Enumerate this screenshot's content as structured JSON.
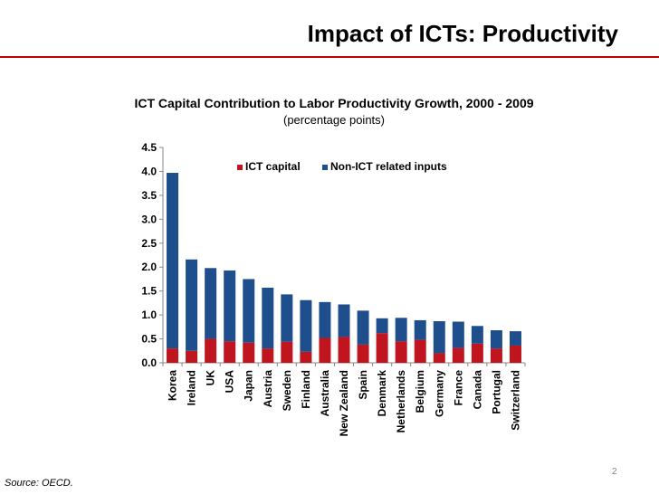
{
  "slide": {
    "title": "Impact of ICTs: Productivity",
    "source": "Source: OECD.",
    "page_number": "2"
  },
  "colors": {
    "accent": "#c00000",
    "ict": "#c0141e",
    "non_ict": "#1f4e8c"
  },
  "chart_data": {
    "type": "bar",
    "stacked": true,
    "title": "ICT Capital Contribution to Labor Productivity Growth, 2000 - 2009",
    "subtitle": "(percentage points)",
    "xlabel": "",
    "ylabel": "",
    "ylim": [
      0,
      4.5
    ],
    "yticks": [
      "0.0",
      "0.5",
      "1.0",
      "1.5",
      "2.0",
      "2.5",
      "3.0",
      "3.5",
      "4.0",
      "4.5"
    ],
    "grid": false,
    "legend_position": "top-center",
    "categories": [
      "Korea",
      "Ireland",
      "UK",
      "USA",
      "Japan",
      "Austria",
      "Sweden",
      "Finland",
      "Australia",
      "New Zealand",
      "Spain",
      "Denmark",
      "Netherlands",
      "Belgium",
      "Germany",
      "France",
      "Canada",
      "Portugal",
      "Switzerland"
    ],
    "series": [
      {
        "name": "ICT capital",
        "values": [
          0.3,
          0.25,
          0.5,
          0.45,
          0.42,
          0.3,
          0.44,
          0.23,
          0.52,
          0.54,
          0.38,
          0.62,
          0.45,
          0.48,
          0.2,
          0.31,
          0.4,
          0.3,
          0.36
        ]
      },
      {
        "name": "Non-ICT related inputs",
        "values": [
          3.67,
          1.91,
          1.48,
          1.48,
          1.33,
          1.27,
          0.99,
          1.08,
          0.75,
          0.68,
          0.71,
          0.31,
          0.49,
          0.41,
          0.67,
          0.55,
          0.37,
          0.38,
          0.3
        ]
      }
    ]
  }
}
